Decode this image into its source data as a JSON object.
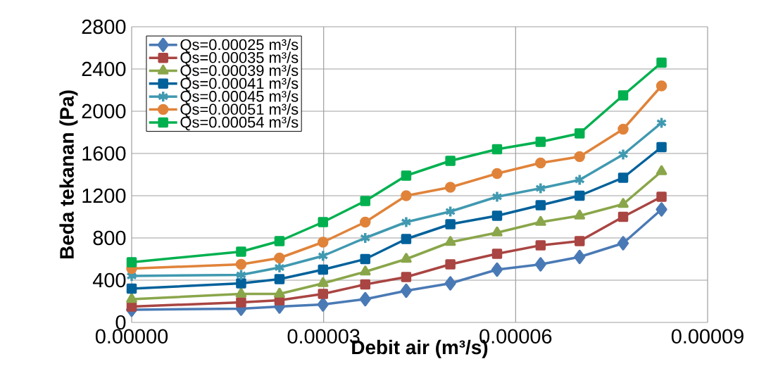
{
  "chart_data": {
    "type": "line",
    "xlabel": "Debit air (m³/s)",
    "ylabel": "Beda tekanan (Pa)",
    "x": [
      0,
      1.71e-05,
      2.31e-05,
      2.99e-05,
      3.65e-05,
      4.29e-05,
      4.98e-05,
      5.71e-05,
      6.39e-05,
      7e-05,
      7.68e-05,
      8.28e-05
    ],
    "xlim": [
      0,
      9e-05
    ],
    "xticks": [
      {
        "value": 0,
        "label": "0.00000"
      },
      {
        "value": 3e-05,
        "label": "0.00003"
      },
      {
        "value": 6e-05,
        "label": "0.00006"
      },
      {
        "value": 9e-05,
        "label": "0.00009"
      }
    ],
    "ylim": [
      0,
      2800
    ],
    "yticks": [
      0,
      400,
      800,
      1200,
      1600,
      2000,
      2400,
      2800
    ],
    "grid": true,
    "legend": "top left",
    "line_style": "solid",
    "series": [
      {
        "name": "Qs=0.00025  m³/s",
        "color": "#4a7ab5",
        "marker": "diamond",
        "values": [
          120,
          130,
          150,
          170,
          220,
          300,
          370,
          500,
          550,
          620,
          750,
          1070
        ]
      },
      {
        "name": "Qs=0.00035  m³/s",
        "color": "#a94542",
        "marker": "square",
        "values": [
          150,
          190,
          210,
          270,
          360,
          430,
          550,
          650,
          730,
          770,
          1000,
          1190
        ]
      },
      {
        "name": "Qs=0.00039  m³/s",
        "color": "#8aa64a",
        "marker": "triangle",
        "values": [
          220,
          270,
          270,
          370,
          480,
          600,
          760,
          850,
          950,
          1010,
          1120,
          1430
        ]
      },
      {
        "name": "Qs=0.00041  m³/s",
        "color": "#01619b",
        "marker": "square",
        "values": [
          320,
          370,
          410,
          500,
          600,
          790,
          930,
          1010,
          1110,
          1200,
          1370,
          1660
        ]
      },
      {
        "name": "Qs=0.00045  m³/s",
        "color": "#4099b0",
        "marker": "cross",
        "values": [
          440,
          450,
          520,
          630,
          800,
          950,
          1050,
          1190,
          1270,
          1350,
          1590,
          1890
        ]
      },
      {
        "name": "Qs=0.00051  m³/s",
        "color": "#e0833a",
        "marker": "circle",
        "values": [
          510,
          550,
          610,
          760,
          950,
          1200,
          1280,
          1410,
          1510,
          1570,
          1830,
          2240
        ]
      },
      {
        "name": "Qs=0.00054 m³/s",
        "color": "#00b04f",
        "marker": "square",
        "values": [
          570,
          670,
          770,
          950,
          1150,
          1390,
          1530,
          1640,
          1710,
          1790,
          2150,
          2460
        ]
      }
    ]
  }
}
